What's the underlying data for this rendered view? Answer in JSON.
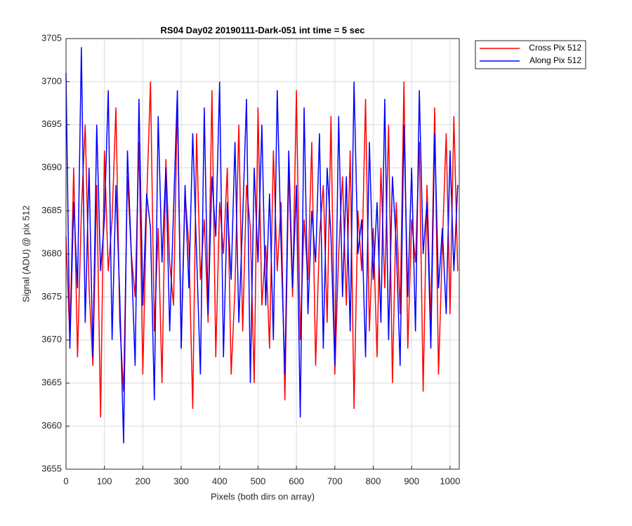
{
  "chart_data": {
    "type": "line",
    "title": "RS04 Day02 20190111-Dark-051 int time = 5 sec",
    "x_label": "Pixels (both dirs on array)",
    "y_label": "Signal (ADU) @ pix 512",
    "x": [
      0,
      10,
      20,
      30,
      40,
      50,
      60,
      70,
      80,
      90,
      100,
      110,
      120,
      130,
      140,
      150,
      160,
      170,
      180,
      190,
      200,
      210,
      220,
      230,
      240,
      250,
      260,
      270,
      280,
      290,
      300,
      310,
      320,
      330,
      340,
      350,
      360,
      370,
      380,
      390,
      400,
      410,
      420,
      430,
      440,
      450,
      460,
      470,
      480,
      490,
      500,
      510,
      520,
      530,
      540,
      550,
      560,
      570,
      580,
      590,
      600,
      610,
      620,
      630,
      640,
      650,
      660,
      670,
      680,
      690,
      700,
      710,
      720,
      730,
      740,
      750,
      760,
      770,
      780,
      790,
      800,
      810,
      820,
      830,
      840,
      850,
      860,
      870,
      880,
      890,
      900,
      910,
      920,
      930,
      940,
      950,
      960,
      970,
      980,
      990,
      1000,
      1010,
      1020
    ],
    "series": [
      {
        "name": "Cross Pix 512",
        "color": "#ff0000",
        "values": [
          3682,
          3670,
          3690,
          3668,
          3685,
          3695,
          3676,
          3667,
          3688,
          3661,
          3692,
          3678,
          3684,
          3697,
          3672,
          3664,
          3689,
          3680,
          3675,
          3693,
          3666,
          3686,
          3700,
          3671,
          3683,
          3665,
          3691,
          3679,
          3674,
          3698,
          3669,
          3687,
          3681,
          3662,
          3694,
          3677,
          3684,
          3672,
          3699,
          3668,
          3686,
          3680,
          3690,
          3666,
          3676,
          3695,
          3671,
          3688,
          3683,
          3665,
          3697,
          3674,
          3681,
          3669,
          3692,
          3678,
          3686,
          3663,
          3690,
          3675,
          3699,
          3670,
          3684,
          3677,
          3693,
          3667,
          3682,
          3688,
          3672,
          3696,
          3666,
          3680,
          3689,
          3674,
          3692,
          3662,
          3685,
          3678,
          3698,
          3671,
          3683,
          3668,
          3690,
          3676,
          3695,
          3665,
          3686,
          3673,
          3700,
          3669,
          3684,
          3679,
          3693,
          3664,
          3688,
          3672,
          3697,
          3666,
          3681,
          3694,
          3673,
          3696,
          3678
        ]
      },
      {
        "name": "Along Pix 512",
        "color": "#0000ff",
        "values": [
          3701,
          3669,
          3686,
          3676,
          3704,
          3672,
          3690,
          3668,
          3695,
          3678,
          3684,
          3699,
          3670,
          3688,
          3675,
          3658,
          3692,
          3680,
          3667,
          3698,
          3674,
          3687,
          3683,
          3663,
          3696,
          3679,
          3690,
          3671,
          3685,
          3699,
          3669,
          3688,
          3676,
          3694,
          3680,
          3666,
          3697,
          3673,
          3689,
          3682,
          3700,
          3668,
          3686,
          3677,
          3693,
          3672,
          3684,
          3698,
          3665,
          3690,
          3679,
          3695,
          3674,
          3687,
          3670,
          3699,
          3681,
          3666,
          3692,
          3676,
          3688,
          3661,
          3697,
          3673,
          3685,
          3679,
          3694,
          3669,
          3690,
          3682,
          3667,
          3696,
          3675,
          3689,
          3671,
          3700,
          3680,
          3684,
          3668,
          3693,
          3677,
          3686,
          3672,
          3698,
          3670,
          3689,
          3681,
          3667,
          3695,
          3675,
          3690,
          3671,
          3699,
          3680,
          3686,
          3669,
          3694,
          3676,
          3683,
          3673,
          3692,
          3678,
          3688
        ]
      }
    ],
    "xlim": [
      0,
      1024
    ],
    "xticks": [
      0,
      100,
      200,
      300,
      400,
      500,
      600,
      700,
      800,
      900,
      1000
    ],
    "ylim": [
      3655,
      3705
    ],
    "yticks": [
      3655,
      3660,
      3665,
      3670,
      3675,
      3680,
      3685,
      3690,
      3695,
      3700,
      3705
    ],
    "grid": true,
    "legend": "outside-top-right"
  }
}
